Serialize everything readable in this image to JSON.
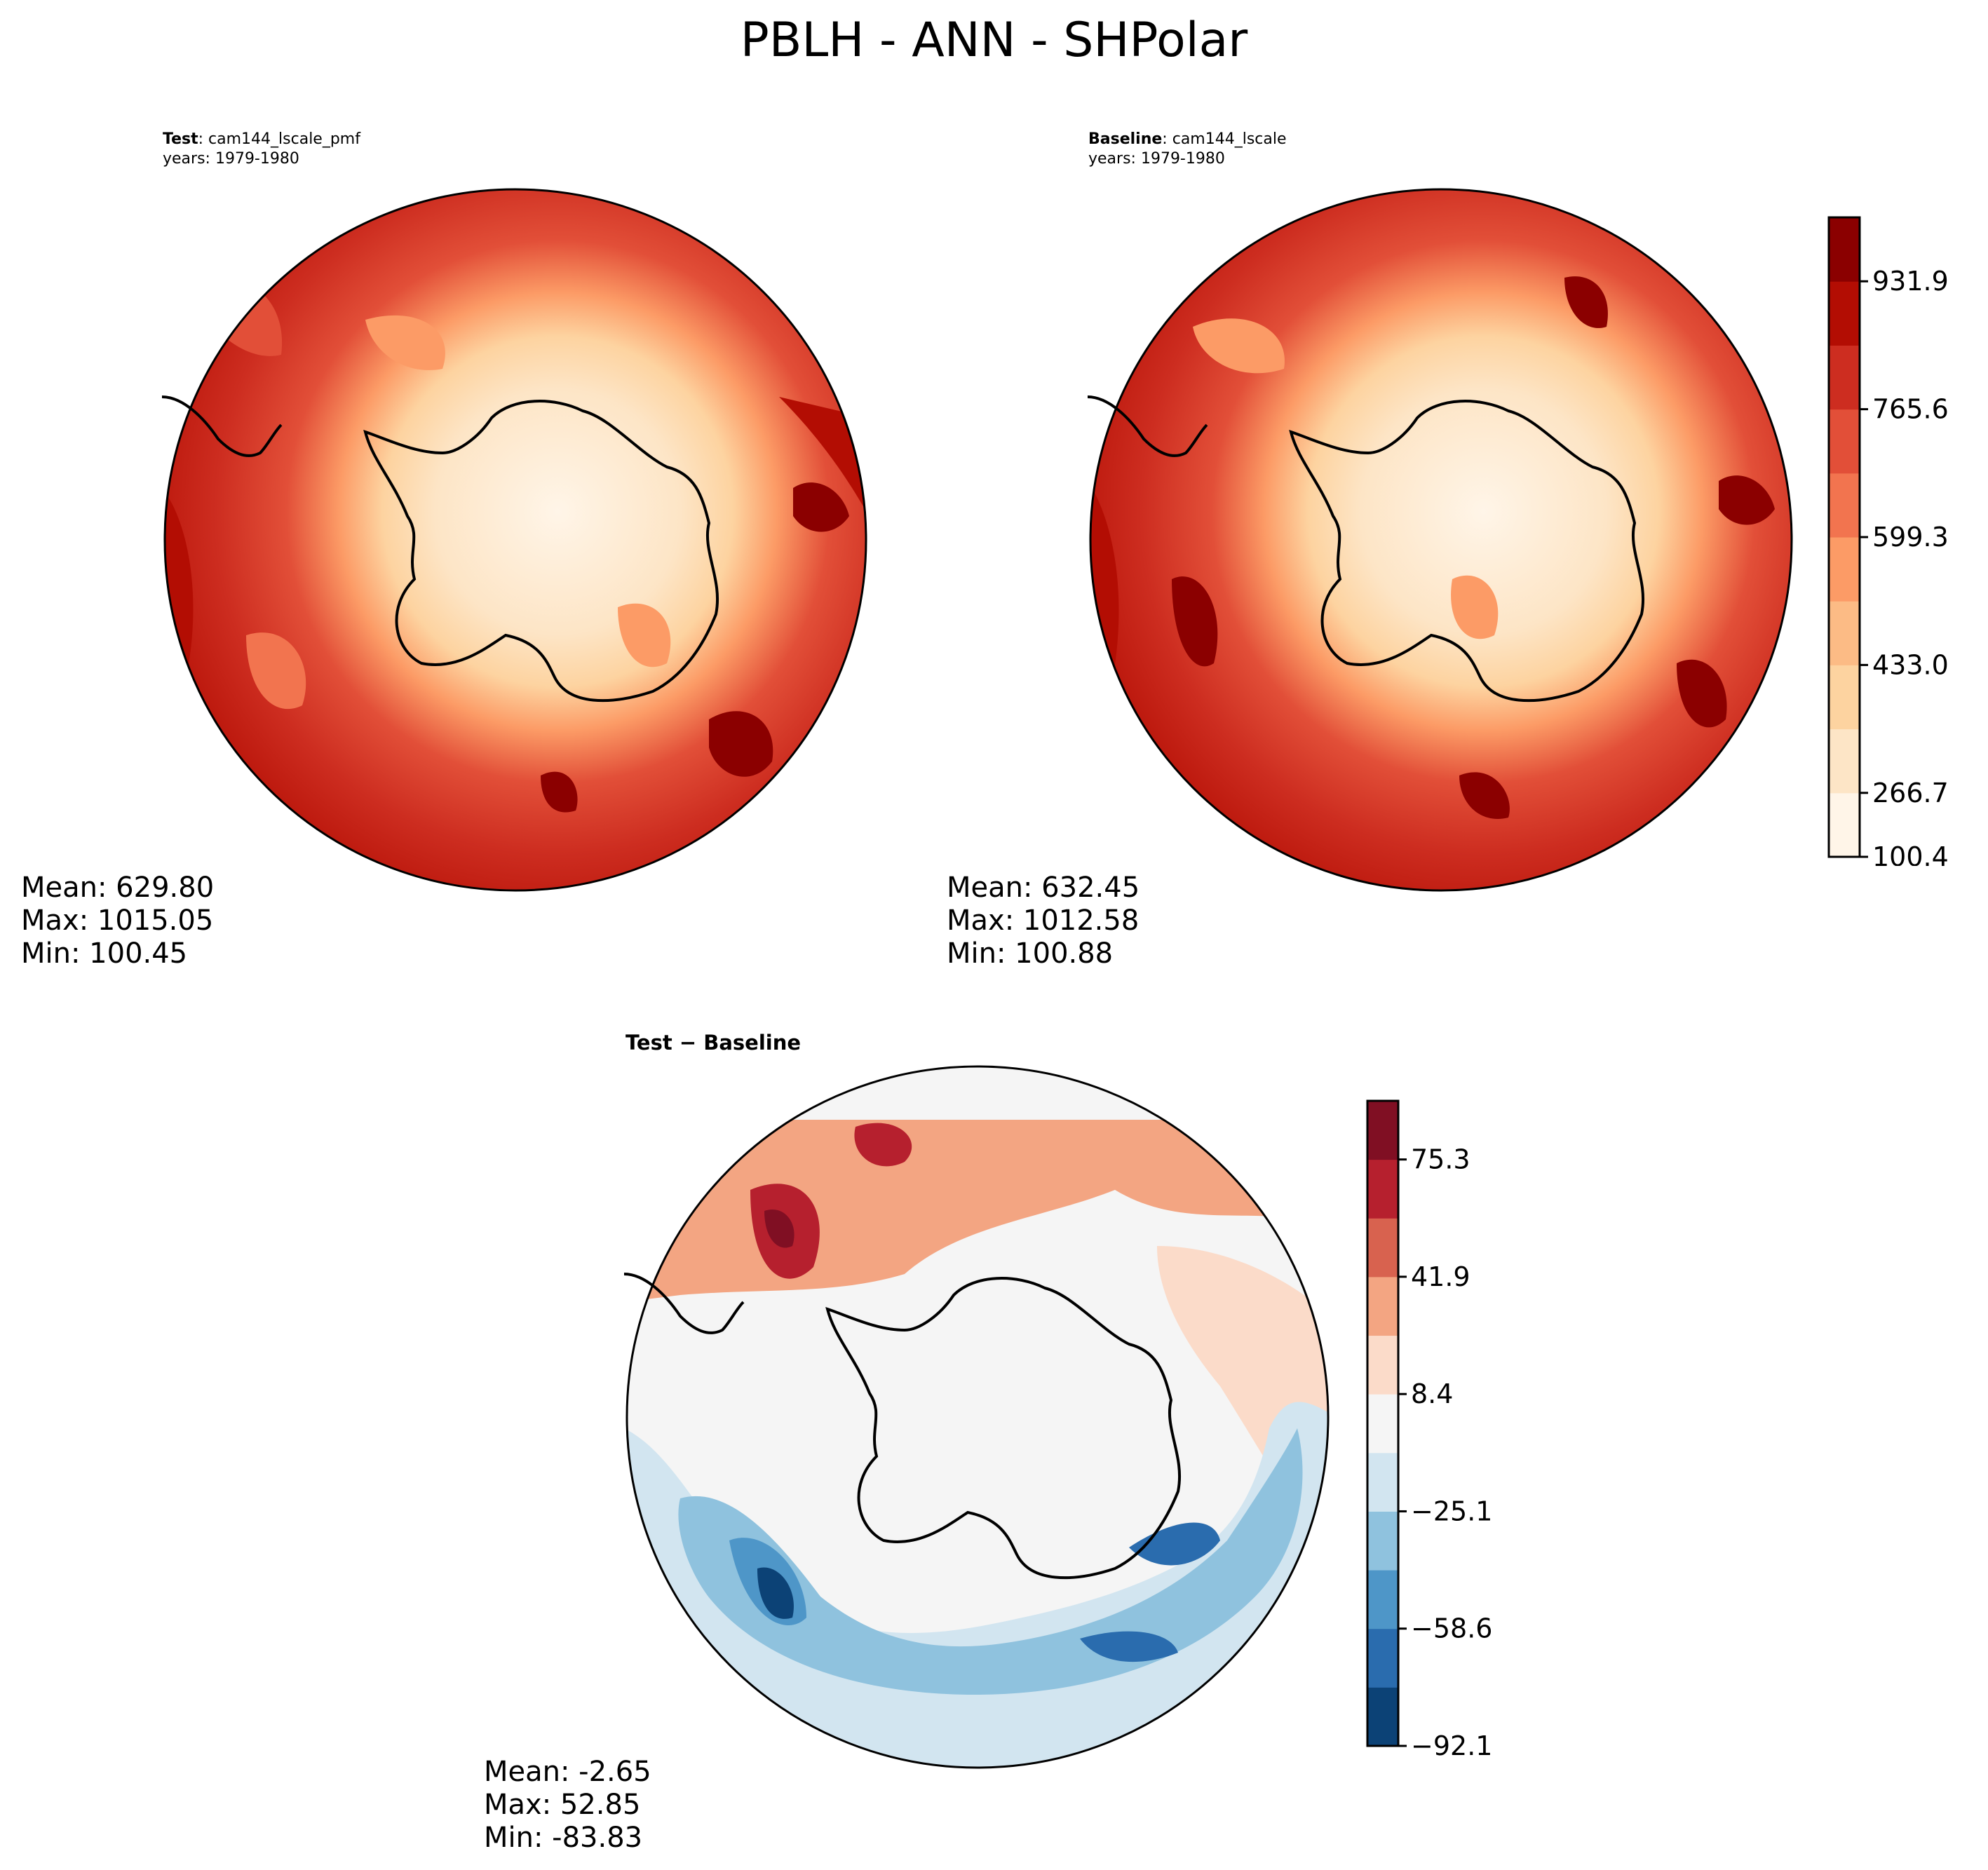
{
  "figure": {
    "title": "PBLH - ANN - SHPolar"
  },
  "chart_data": [
    {
      "type": "heatmap",
      "projection": "south-polar-stereographic",
      "panel": "test",
      "label_bold": "Test",
      "label_sep": ":",
      "case_name": "cam144_lscale_pmf",
      "years": "years: 1979-1980",
      "stats": {
        "mean": "Mean: 629.80",
        "max": "Max: 1015.05",
        "min": "Min: 100.45"
      },
      "colormap": "OrRd-like (cream to dark red)"
    },
    {
      "type": "heatmap",
      "projection": "south-polar-stereographic",
      "panel": "baseline",
      "label_bold": "Baseline",
      "label_sep": ":",
      "case_name": "cam144_lscale",
      "years": "years: 1979-1980",
      "stats": {
        "mean": "Mean: 632.45",
        "max": "Max: 1012.58",
        "min": "Min: 100.88"
      },
      "colorbar": {
        "ticks": [
          "931.9",
          "765.6",
          "599.3",
          "433.0",
          "266.7",
          "100.4"
        ],
        "levels": [
          100.4,
          1015.05
        ],
        "colors": [
          "#fff5e8",
          "#fde5c6",
          "#fdd3a0",
          "#fcbb85",
          "#fc9b66",
          "#f2744f",
          "#e24f38",
          "#cd2d20",
          "#b30d03",
          "#8b0000"
        ]
      }
    },
    {
      "type": "heatmap",
      "projection": "south-polar-stereographic",
      "panel": "difference",
      "title": "Test − Baseline",
      "stats": {
        "mean": "Mean: -2.65",
        "max": "Max: 52.85",
        "min": "Min: -83.83"
      },
      "colorbar": {
        "ticks": [
          "75.3",
          "41.9",
          "8.4",
          "−25.1",
          "−58.6",
          "−92.1"
        ],
        "levels": [
          -92.1,
          92.1
        ],
        "colors": [
          "#0c4276",
          "#2a6cae",
          "#4e96c8",
          "#8fc2de",
          "#d2e5f0",
          "#f5f5f5",
          "#fbdbc9",
          "#f3a582",
          "#d8624f",
          "#b6202e",
          "#800f23"
        ]
      }
    }
  ]
}
